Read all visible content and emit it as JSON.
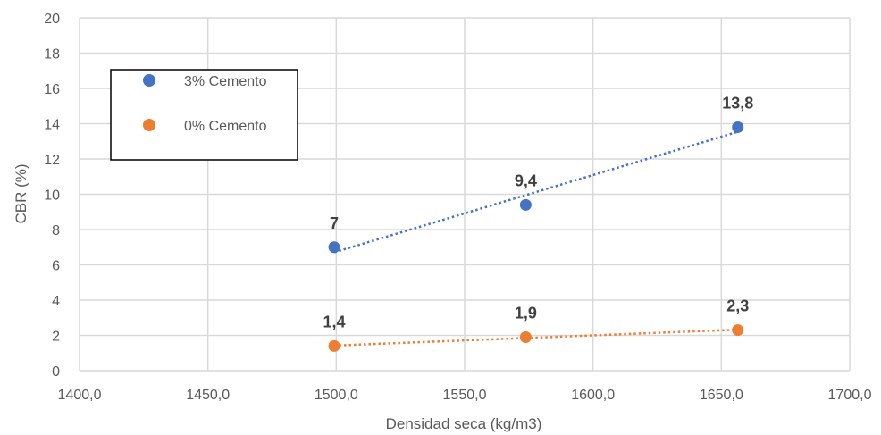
{
  "chart_data": {
    "type": "scatter",
    "xlabel": "Densidad seca (kg/m3)",
    "ylabel": "CBR (%)",
    "xlim": [
      1400,
      1700
    ],
    "ylim": [
      0,
      20
    ],
    "x_ticks": [
      "1400,0",
      "1450,0",
      "1500,0",
      "1550,0",
      "1600,0",
      "1650,0",
      "1700,0"
    ],
    "y_ticks": [
      "0",
      "2",
      "4",
      "6",
      "8",
      "10",
      "12",
      "14",
      "16",
      "18",
      "20"
    ],
    "grid": true,
    "legend_position": "top-left",
    "trendline": "linear, dotted",
    "series": [
      {
        "name": "3% Cemento",
        "color": "#4472C4",
        "x": [
          1499.2,
          1573.8,
          1656.4
        ],
        "y": [
          7,
          9.4,
          13.8
        ],
        "labels": [
          "7",
          "9,4",
          "13,8"
        ]
      },
      {
        "name": "0% Cemento",
        "color": "#ED7D31",
        "x": [
          1499.2,
          1573.8,
          1656.4
        ],
        "y": [
          1.4,
          1.9,
          2.3
        ],
        "labels": [
          "1,4",
          "1,9",
          "2,3"
        ]
      }
    ]
  }
}
